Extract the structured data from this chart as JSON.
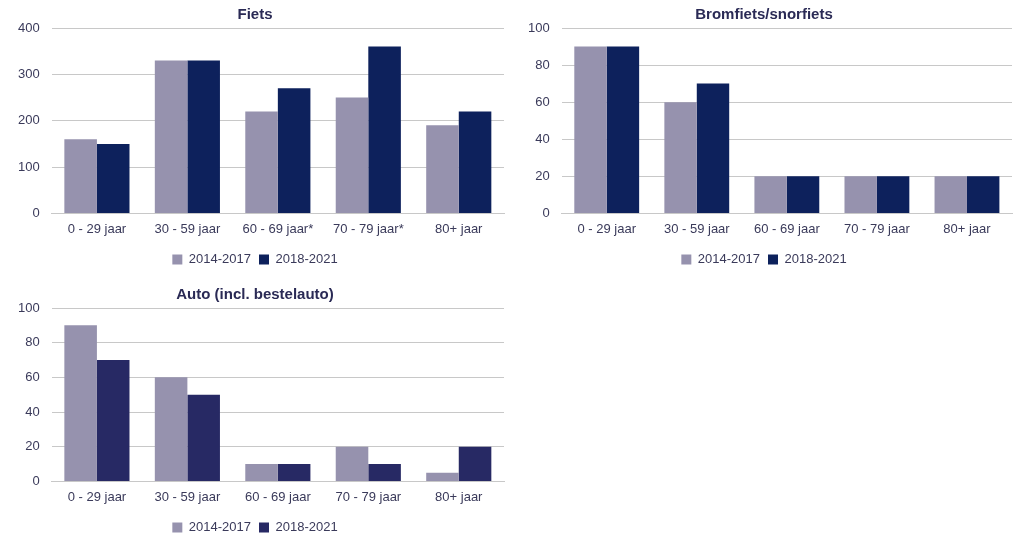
{
  "chart_data": [
    {
      "type": "bar",
      "title": "Fiets",
      "categories": [
        "0 - 29 jaar",
        "30 - 59 jaar",
        "60 - 69 jaar*",
        "70 - 79 jaar*",
        "80+ jaar"
      ],
      "series": [
        {
          "name": "2014-2017",
          "color": "#9692ae",
          "values": [
            160,
            330,
            220,
            250,
            190
          ]
        },
        {
          "name": "2018-2021",
          "color": "#0d215c",
          "values": [
            150,
            330,
            270,
            360,
            220
          ]
        }
      ],
      "ylim": [
        0,
        400
      ],
      "yticks": [
        0,
        100,
        200,
        300,
        400
      ],
      "grid": "y",
      "legend": "bottom"
    },
    {
      "type": "bar",
      "title": "Bromfiets/snorfiets",
      "categories": [
        "0 - 29 jaar",
        "30 - 59 jaar",
        "60 - 69 jaar",
        "70 - 79 jaar",
        "80+ jaar"
      ],
      "series": [
        {
          "name": "2014-2017",
          "color": "#9692ae",
          "values": [
            90,
            60,
            20,
            20,
            20
          ]
        },
        {
          "name": "2018-2021",
          "color": "#0d215c",
          "values": [
            90,
            70,
            20,
            20,
            20
          ]
        }
      ],
      "ylim": [
        0,
        100
      ],
      "yticks": [
        0,
        20,
        40,
        60,
        80,
        100
      ],
      "grid": "y",
      "legend": "bottom"
    },
    {
      "type": "bar",
      "title": "Auto (incl. bestelauto)",
      "categories": [
        "0 - 29 jaar",
        "30 - 59 jaar",
        "60 - 69 jaar",
        "70 - 79 jaar",
        "80+ jaar"
      ],
      "series": [
        {
          "name": "2014-2017",
          "color": "#9692ae",
          "values": [
            90,
            60,
            10,
            20,
            5
          ]
        },
        {
          "name": "2018-2021",
          "color": "#272964",
          "values": [
            70,
            50,
            10,
            10,
            20
          ]
        }
      ],
      "ylim": [
        0,
        100
      ],
      "yticks": [
        0,
        20,
        40,
        60,
        80,
        100
      ],
      "grid": "y",
      "legend": "bottom"
    }
  ]
}
